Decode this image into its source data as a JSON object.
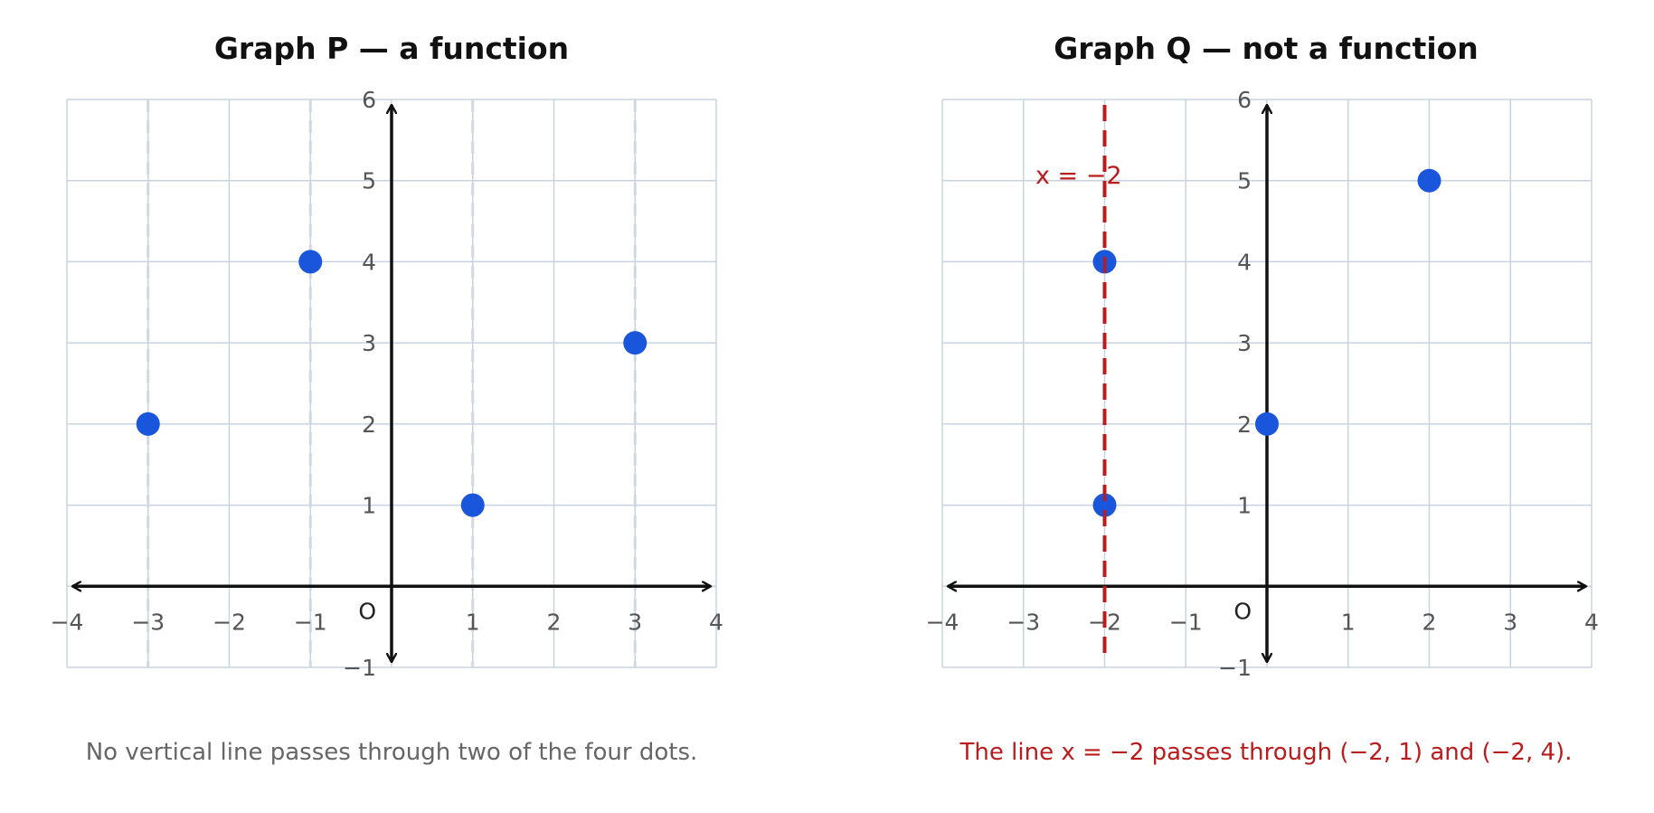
{
  "colors": {
    "grid": "#c9d3df",
    "axis": "#111111",
    "tick_label": "#555555",
    "dot": "#1a56db",
    "highlight": "#b91c1c",
    "caption": "#666666",
    "title": "#111111"
  },
  "origin_label": "O",
  "chart_data": [
    {
      "type": "scatter",
      "title": "Graph P — a function",
      "xlim": [
        -4,
        4
      ],
      "ylim": [
        -1,
        6
      ],
      "x_ticks": [
        -4,
        -3,
        -2,
        -1,
        1,
        2,
        3,
        4
      ],
      "y_ticks": [
        -1,
        1,
        2,
        3,
        4,
        5,
        6
      ],
      "x_tick_labels": [
        "−4",
        "−3",
        "−2",
        "−1",
        "1",
        "2",
        "3",
        "4"
      ],
      "y_tick_labels": [
        "−1",
        "1",
        "2",
        "3",
        "4",
        "5",
        "6"
      ],
      "grid": true,
      "points": [
        {
          "x": -3,
          "y": 2
        },
        {
          "x": -1,
          "y": 4
        },
        {
          "x": 1,
          "y": 1
        },
        {
          "x": 3,
          "y": 3
        }
      ],
      "guide_lines_x": [
        -3,
        -1,
        1,
        3
      ],
      "caption": "No vertical line passes through two of the four dots."
    },
    {
      "type": "scatter",
      "title": "Graph Q — not a function",
      "xlim": [
        -4,
        4
      ],
      "ylim": [
        -1,
        6
      ],
      "x_ticks": [
        -4,
        -3,
        -2,
        -1,
        1,
        2,
        3,
        4
      ],
      "y_ticks": [
        -1,
        1,
        2,
        3,
        4,
        5,
        6
      ],
      "x_tick_labels": [
        "−4",
        "−3",
        "−2",
        "−1",
        "1",
        "2",
        "3",
        "4"
      ],
      "y_tick_labels": [
        "−1",
        "1",
        "2",
        "3",
        "4",
        "5",
        "6"
      ],
      "grid": true,
      "points": [
        {
          "x": -2,
          "y": 1
        },
        {
          "x": -2,
          "y": 4
        },
        {
          "x": 0,
          "y": 2
        },
        {
          "x": 2,
          "y": 5
        }
      ],
      "vertical_line": {
        "x": -2,
        "label": "x = −2"
      },
      "caption": "The line x = −2 passes through (−2, 1) and (−2, 4)."
    }
  ]
}
